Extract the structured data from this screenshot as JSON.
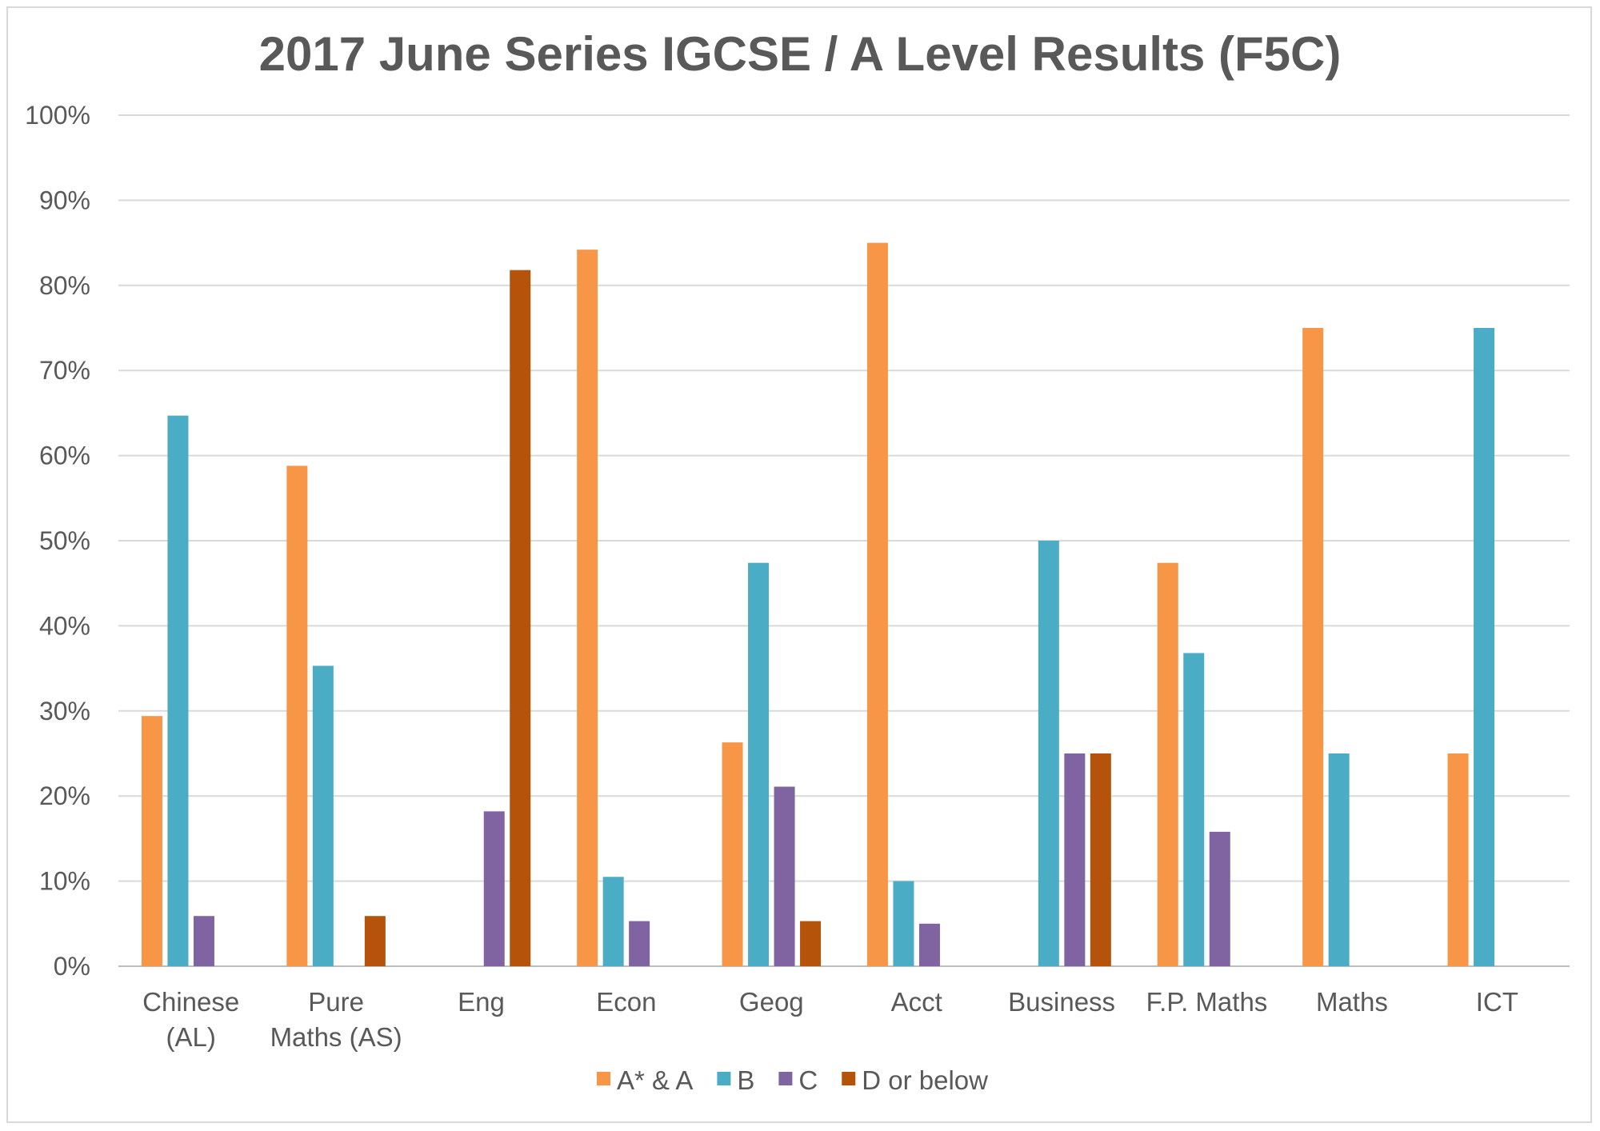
{
  "chart_data": {
    "type": "bar",
    "title": "2017 June Series IGCSE / A Level Results (F5C)",
    "xlabel": "",
    "ylabel": "",
    "ylim": [
      0,
      100
    ],
    "yticks": [
      0,
      10,
      20,
      30,
      40,
      50,
      60,
      70,
      80,
      90,
      100
    ],
    "ytick_labels": [
      "0%",
      "10%",
      "20%",
      "30%",
      "40%",
      "50%",
      "60%",
      "70%",
      "80%",
      "90%",
      "100%"
    ],
    "grid": true,
    "legend_position": "bottom",
    "categories": [
      [
        "Chinese",
        "(AL)"
      ],
      [
        "Pure",
        "Maths (AS)"
      ],
      [
        "Eng"
      ],
      [
        "Econ"
      ],
      [
        "Geog"
      ],
      [
        "Acct"
      ],
      [
        "Business"
      ],
      [
        "F.P. Maths"
      ],
      [
        "Maths"
      ],
      [
        "ICT"
      ]
    ],
    "series": [
      {
        "name": "A* & A",
        "color": "#f79646",
        "values": [
          29.4,
          58.8,
          0,
          84.2,
          26.3,
          85.0,
          0,
          47.4,
          75.0,
          25.0
        ]
      },
      {
        "name": "B",
        "color": "#4bacc6",
        "values": [
          64.7,
          35.3,
          0,
          10.5,
          47.4,
          10.0,
          50.0,
          36.8,
          25.0,
          75.0
        ]
      },
      {
        "name": "C",
        "color": "#8064a2",
        "values": [
          5.9,
          0,
          18.2,
          5.3,
          21.1,
          5.0,
          25.0,
          15.8,
          0,
          0
        ]
      },
      {
        "name": "D or below",
        "color": "#b45309",
        "values": [
          0,
          5.9,
          81.8,
          0,
          5.3,
          0,
          25.0,
          0,
          0,
          0
        ]
      }
    ]
  }
}
